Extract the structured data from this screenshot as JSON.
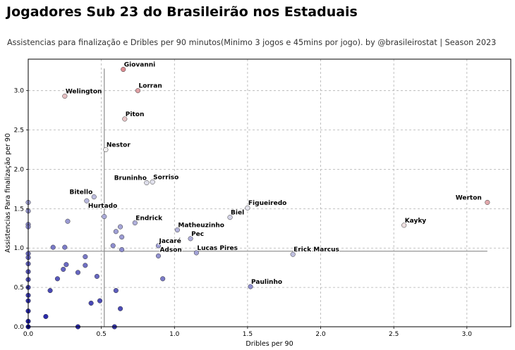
{
  "title": "Jogadores Sub 23 do Brasileirão nos Estaduais",
  "subtitle": "Assistencias para finalização e Dribles per 90 minutos(Minimo 3 jogos e 45mins por jogo). by @brasileirostat | Season 2023",
  "chart_data": {
    "type": "scatter",
    "title": "Jogadores Sub 23 do Brasileirão nos Estaduais",
    "subtitle": "Assistencias para finalização e Dribles per 90 minutos(Minimo 3 jogos e 45mins por jogo). by @brasileirostat | Season 2023",
    "xlabel": "Dribles per 90",
    "ylabel": "Assistencias Para finalização per 90",
    "xlim": [
      0,
      3.3
    ],
    "ylim": [
      0,
      3.4
    ],
    "xticks": [
      "0.0",
      "0.5",
      "1.0",
      "1.5",
      "2.0",
      "2.5",
      "3.0"
    ],
    "yticks": [
      "0.0",
      "0.5",
      "1.0",
      "1.5",
      "2.0",
      "2.5",
      "3.0"
    ],
    "grid": true,
    "reference_lines": {
      "x_mean": 0.52,
      "y_mean": 0.96
    },
    "color_scale": {
      "low": "#1a1aa6",
      "mid": "#f2f2f2",
      "high": "#c0101c"
    },
    "labeled_points": [
      {
        "label": "Giovanni",
        "x": 0.65,
        "y": 3.27
      },
      {
        "label": "Lorran",
        "x": 0.75,
        "y": 3.0
      },
      {
        "label": "Welington",
        "x": 0.25,
        "y": 2.93
      },
      {
        "label": "Piton",
        "x": 0.66,
        "y": 2.64
      },
      {
        "label": "Nestor",
        "x": 0.53,
        "y": 2.25
      },
      {
        "label": "Bruninho",
        "x": 0.81,
        "y": 1.83
      },
      {
        "label": "Sorriso",
        "x": 0.85,
        "y": 1.84
      },
      {
        "label": "Bitello",
        "x": 0.45,
        "y": 1.65
      },
      {
        "label": "Hurtado",
        "x": 0.4,
        "y": 1.6
      },
      {
        "label": "Werton",
        "x": 3.14,
        "y": 1.58
      },
      {
        "label": "Figueiredo",
        "x": 1.5,
        "y": 1.51
      },
      {
        "label": "Biel",
        "x": 1.38,
        "y": 1.39
      },
      {
        "label": "Endrick",
        "x": 0.73,
        "y": 1.32
      },
      {
        "label": "Kayky",
        "x": 2.57,
        "y": 1.29
      },
      {
        "label": "Matheuzinho",
        "x": 1.02,
        "y": 1.23
      },
      {
        "label": "Pec",
        "x": 1.11,
        "y": 1.12
      },
      {
        "label": "Jacaré",
        "x": 0.89,
        "y": 1.03
      },
      {
        "label": "Adson",
        "x": 0.89,
        "y": 0.9
      },
      {
        "label": "Lucas Pires",
        "x": 1.15,
        "y": 0.94
      },
      {
        "label": "Erick Marcus",
        "x": 1.81,
        "y": 0.92
      },
      {
        "label": "Paulinho",
        "x": 1.52,
        "y": 0.51
      }
    ],
    "other_points": [
      {
        "x": 0.0,
        "y": 1.58
      },
      {
        "x": 0.0,
        "y": 1.47
      },
      {
        "x": 0.0,
        "y": 1.3
      },
      {
        "x": 0.0,
        "y": 1.27
      },
      {
        "x": 0.0,
        "y": 0.93
      },
      {
        "x": 0.0,
        "y": 0.88
      },
      {
        "x": 0.0,
        "y": 0.8
      },
      {
        "x": 0.0,
        "y": 0.7
      },
      {
        "x": 0.0,
        "y": 0.6
      },
      {
        "x": 0.0,
        "y": 0.5
      },
      {
        "x": 0.0,
        "y": 0.4
      },
      {
        "x": 0.0,
        "y": 0.33
      },
      {
        "x": 0.0,
        "y": 0.2
      },
      {
        "x": 0.0,
        "y": 0.07
      },
      {
        "x": 0.0,
        "y": 0.0
      },
      {
        "x": 0.12,
        "y": 0.13
      },
      {
        "x": 0.15,
        "y": 0.46
      },
      {
        "x": 0.17,
        "y": 1.01
      },
      {
        "x": 0.2,
        "y": 0.61
      },
      {
        "x": 0.24,
        "y": 0.73
      },
      {
        "x": 0.25,
        "y": 1.01
      },
      {
        "x": 0.26,
        "y": 0.79
      },
      {
        "x": 0.27,
        "y": 1.34
      },
      {
        "x": 0.34,
        "y": 0.69
      },
      {
        "x": 0.34,
        "y": 0.0
      },
      {
        "x": 0.39,
        "y": 0.89
      },
      {
        "x": 0.39,
        "y": 0.78
      },
      {
        "x": 0.43,
        "y": 0.3
      },
      {
        "x": 0.47,
        "y": 0.64
      },
      {
        "x": 0.49,
        "y": 0.33
      },
      {
        "x": 0.52,
        "y": 1.4
      },
      {
        "x": 0.58,
        "y": 1.03
      },
      {
        "x": 0.6,
        "y": 1.21
      },
      {
        "x": 0.6,
        "y": 0.46
      },
      {
        "x": 0.59,
        "y": 0.0
      },
      {
        "x": 0.63,
        "y": 1.27
      },
      {
        "x": 0.64,
        "y": 1.14
      },
      {
        "x": 0.64,
        "y": 0.98
      },
      {
        "x": 0.63,
        "y": 0.23
      },
      {
        "x": 0.92,
        "y": 0.61
      }
    ]
  }
}
